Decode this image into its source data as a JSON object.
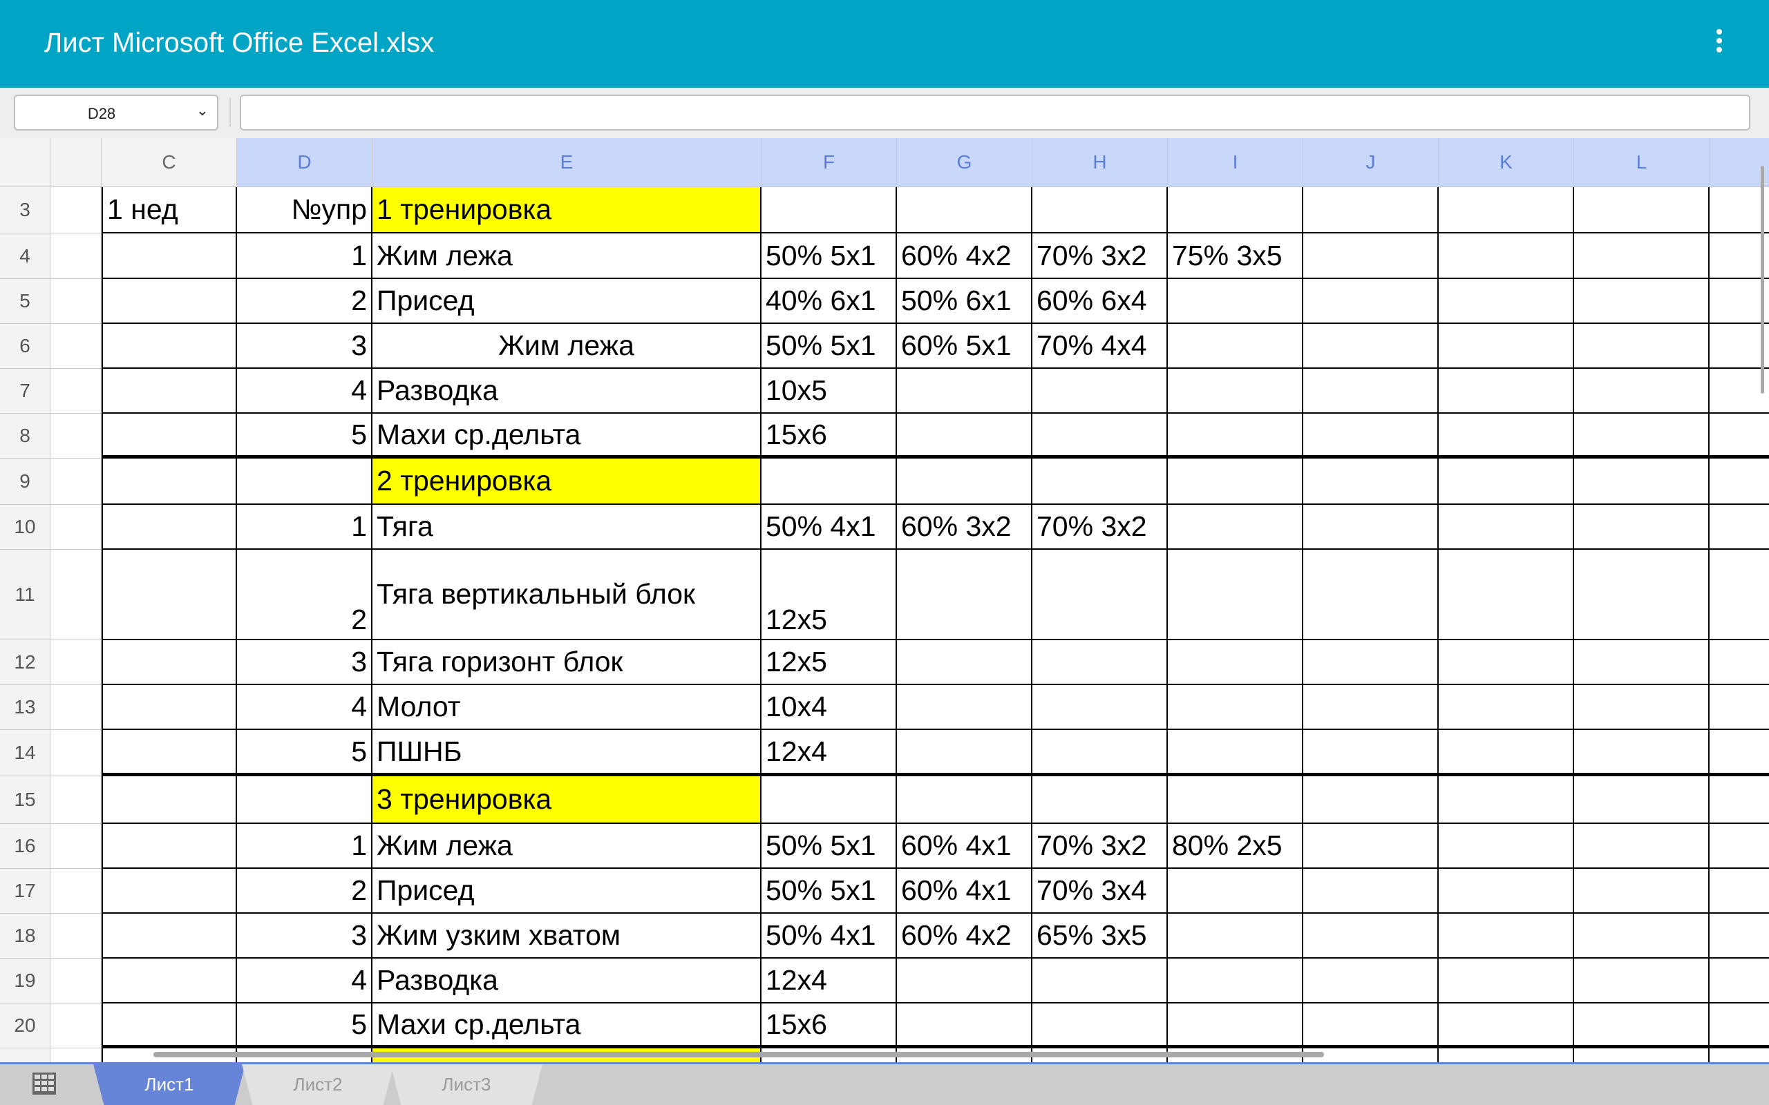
{
  "app": {
    "title": "Лист Microsoft Office Excel.xlsx",
    "menu_icon": "more-vert-icon"
  },
  "toolbar": {
    "name_box": "D28",
    "formula": ""
  },
  "colors": {
    "appbar": "#00a5c5",
    "selected_header": "#c9d7fb",
    "highlight": "#ffff00",
    "active_tab": "#6785d8"
  },
  "columns": [
    "",
    "C",
    "D",
    "E",
    "F",
    "G",
    "H",
    "I",
    "J",
    "K",
    "L",
    ""
  ],
  "selected_columns": [
    "D",
    "E",
    "F",
    "G",
    "H",
    "I",
    "J",
    "K",
    "L"
  ],
  "rows": [
    {
      "n": "3",
      "cells": {
        "C": "1 нед",
        "D": "№упр",
        "E": "1 тренировка"
      },
      "yellow": true
    },
    {
      "n": "4",
      "cells": {
        "D": "1",
        "E": "Жим лежа",
        "F": "50% 5x1",
        "G": "60% 4x2",
        "H": "70% 3x2",
        "I": "75% 3x5"
      }
    },
    {
      "n": "5",
      "cells": {
        "D": "2",
        "E": "Присед",
        "F": "40% 6x1",
        "G": "50% 6x1",
        "H": "60% 6x4"
      }
    },
    {
      "n": "6",
      "cells": {
        "D": "3",
        "E": "Жим лежа",
        "F": "50% 5x1",
        "G": "60% 5x1",
        "H": "70% 4x4"
      },
      "center_e": true
    },
    {
      "n": "7",
      "cells": {
        "D": "4",
        "E": "Разводка",
        "F": "10x5"
      }
    },
    {
      "n": "8",
      "cells": {
        "D": "5",
        "E": "Махи ср.дельта",
        "F": "15x6"
      },
      "thick": true
    },
    {
      "n": "9",
      "cells": {
        "E": "2 тренировка"
      },
      "yellow": true
    },
    {
      "n": "10",
      "cells": {
        "D": "1",
        "E": "Тяга",
        "F": "50% 4x1",
        "G": "60% 3x2",
        "H": "70% 3x2"
      }
    },
    {
      "n": "11",
      "cells": {
        "D": "2",
        "E": "Тяга вертикальный блок",
        "F": "12x5"
      },
      "tall": true
    },
    {
      "n": "12",
      "cells": {
        "D": "3",
        "E": "Тяга горизонт блок",
        "F": "12x5"
      }
    },
    {
      "n": "13",
      "cells": {
        "D": "4",
        "E": "Молот",
        "F": "10x4"
      }
    },
    {
      "n": "14",
      "cells": {
        "D": "5",
        "E": "ПШНБ",
        "F": "12x4"
      },
      "thick": true
    },
    {
      "n": "15",
      "cells": {
        "E": "3 тренировка"
      },
      "yellow": true
    },
    {
      "n": "16",
      "cells": {
        "D": "1",
        "E": "Жим лежа",
        "F": "50% 5x1",
        "G": "60% 4x1",
        "H": "70% 3x2",
        "I": "80%  2x5"
      }
    },
    {
      "n": "17",
      "cells": {
        "D": "2",
        "E": "Присед",
        "F": "50% 5x1",
        "G": "60% 4x1",
        "H": "70% 3x4"
      }
    },
    {
      "n": "18",
      "cells": {
        "D": "3",
        "E": "Жим узким хватом",
        "F": "50% 4x1",
        "G": "60% 4x2",
        "H": "65% 3x5"
      }
    },
    {
      "n": "19",
      "cells": {
        "D": "4",
        "E": "Разводка",
        "F": "12x4"
      }
    },
    {
      "n": "20",
      "cells": {
        "D": "5",
        "E": "Махи ср.дельта",
        "F": "15x6"
      },
      "thick": true
    },
    {
      "n": "",
      "cells": {},
      "yellow": true
    }
  ],
  "sheets": [
    {
      "label": "Лист1",
      "active": true
    },
    {
      "label": "Лист2",
      "active": false
    },
    {
      "label": "Лист3",
      "active": false
    }
  ]
}
